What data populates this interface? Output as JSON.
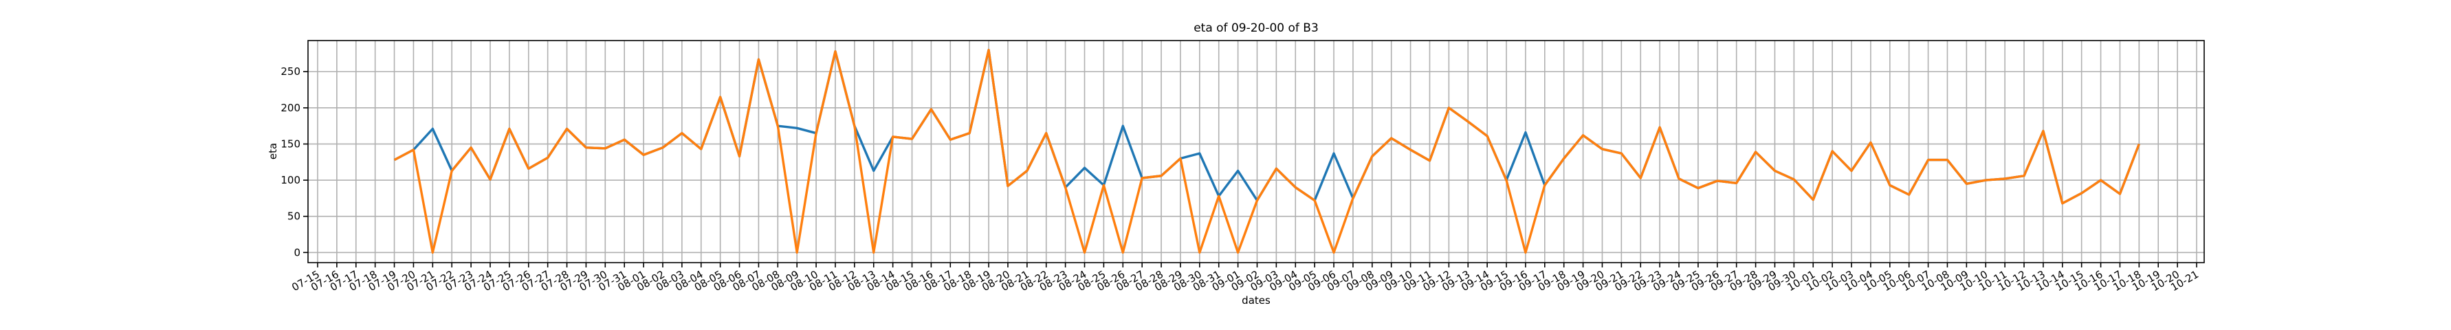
{
  "chart_data": {
    "type": "line",
    "title": "eta of 09-20-00 of B3",
    "x_label": "dates",
    "y_label": "eta",
    "categories": [
      "07-15",
      "07-16",
      "07-17",
      "07-18",
      "07-19",
      "07-20",
      "07-21",
      "07-22",
      "07-23",
      "07-24",
      "07-25",
      "07-26",
      "07-27",
      "07-28",
      "07-29",
      "07-30",
      "07-31",
      "08-01",
      "08-02",
      "08-03",
      "08-04",
      "08-05",
      "08-06",
      "08-07",
      "08-08",
      "08-09",
      "08-10",
      "08-11",
      "08-12",
      "08-13",
      "08-14",
      "08-15",
      "08-16",
      "08-17",
      "08-18",
      "08-19",
      "08-20",
      "08-21",
      "08-22",
      "08-23",
      "08-24",
      "08-25",
      "08-26",
      "08-27",
      "08-28",
      "08-29",
      "08-30",
      "08-31",
      "09-01",
      "09-02",
      "09-03",
      "09-04",
      "09-05",
      "09-06",
      "09-07",
      "09-08",
      "09-09",
      "09-10",
      "09-11",
      "09-12",
      "09-13",
      "09-14",
      "09-15",
      "09-16",
      "09-17",
      "09-18",
      "09-19",
      "09-20",
      "09-21",
      "09-22",
      "09-23",
      "09-24",
      "09-25",
      "09-26",
      "09-27",
      "09-28",
      "09-29",
      "09-30",
      "10-01",
      "10-02",
      "10-03",
      "10-04",
      "10-05",
      "10-06",
      "10-07",
      "10-08",
      "10-09",
      "10-10",
      "10-11",
      "10-12",
      "10-13",
      "10-14",
      "10-15",
      "10-16",
      "10-17",
      "10-18",
      "10-19",
      "10-20",
      "10-21"
    ],
    "series": [
      {
        "color": "#1f77b4",
        "values": [
          null,
          null,
          null,
          null,
          128,
          142,
          171,
          113,
          145,
          101,
          171,
          116,
          131,
          171,
          145,
          144,
          156,
          135,
          145,
          165,
          143,
          215,
          133,
          267,
          175,
          172,
          165,
          278,
          175,
          113,
          160,
          157,
          198,
          156,
          165,
          280,
          92,
          113,
          165,
          90,
          117,
          93,
          175,
          103,
          106,
          130,
          137,
          78,
          113,
          72,
          116,
          90,
          72,
          137,
          75,
          133,
          158,
          142,
          127,
          200,
          181,
          161,
          100,
          166,
          93,
          130,
          162,
          143,
          137,
          103,
          173,
          102,
          89,
          99,
          96,
          139,
          113,
          101,
          73,
          140,
          113,
          152,
          93,
          80,
          128,
          128,
          95,
          100,
          102,
          106,
          168,
          68,
          82,
          100,
          81,
          150,
          null,
          null,
          null
        ]
      },
      {
        "color": "#ff7f0e",
        "values": [
          null,
          null,
          null,
          null,
          128,
          142,
          0,
          113,
          145,
          101,
          171,
          116,
          131,
          171,
          145,
          144,
          156,
          135,
          145,
          165,
          143,
          215,
          133,
          267,
          175,
          0,
          165,
          278,
          175,
          0,
          160,
          157,
          198,
          156,
          165,
          280,
          92,
          113,
          165,
          90,
          0,
          93,
          0,
          103,
          106,
          130,
          0,
          78,
          0,
          72,
          116,
          90,
          72,
          0,
          75,
          133,
          158,
          142,
          127,
          200,
          181,
          161,
          100,
          0,
          93,
          130,
          162,
          143,
          137,
          103,
          173,
          102,
          89,
          99,
          96,
          139,
          113,
          101,
          73,
          140,
          113,
          152,
          93,
          80,
          128,
          128,
          95,
          100,
          102,
          106,
          168,
          68,
          82,
          100,
          81,
          150,
          null,
          null,
          null
        ]
      }
    ],
    "ylim": [
      -14,
      293
    ],
    "yticks": [
      0,
      50,
      100,
      150,
      200,
      250
    ],
    "grid": true
  }
}
